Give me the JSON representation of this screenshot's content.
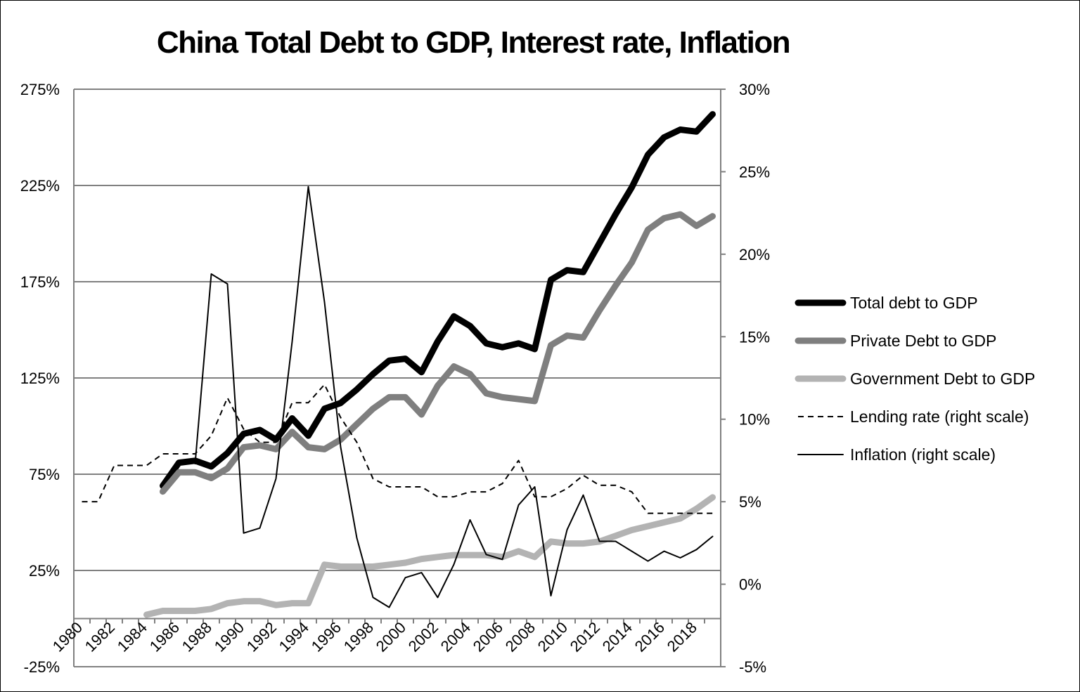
{
  "chart_data": {
    "type": "line",
    "title": "China Total Debt to GDP, Interest rate, Inflation",
    "x": [
      1980,
      1981,
      1982,
      1983,
      1984,
      1985,
      1986,
      1987,
      1988,
      1989,
      1990,
      1991,
      1992,
      1993,
      1994,
      1995,
      1996,
      1997,
      1998,
      1999,
      2000,
      2001,
      2002,
      2003,
      2004,
      2005,
      2006,
      2007,
      2008,
      2009,
      2010,
      2011,
      2012,
      2013,
      2014,
      2015,
      2016,
      2017,
      2018,
      2019
    ],
    "x_tick_labels": [
      "1980",
      "1982",
      "1984",
      "1986",
      "1988",
      "1990",
      "1992",
      "1994",
      "1996",
      "1998",
      "2000",
      "2002",
      "2004",
      "2006",
      "2008",
      "2010",
      "2012",
      "2014",
      "2016",
      "2018"
    ],
    "y_left": {
      "ylim": [
        -25,
        275
      ],
      "ticks": [
        "275%",
        "225%",
        "175%",
        "125%",
        "75%",
        "25%",
        "-25%"
      ],
      "tick_values": [
        275,
        225,
        175,
        125,
        75,
        25,
        -25
      ]
    },
    "y_right": {
      "ylim": [
        -5,
        30
      ],
      "ticks": [
        "30%",
        "25%",
        "20%",
        "15%",
        "10%",
        "5%",
        "0%",
        "-5%"
      ],
      "tick_values": [
        30,
        25,
        20,
        15,
        10,
        5,
        0,
        -5
      ]
    },
    "grid": "horizontal",
    "legend_position": "right",
    "series": [
      {
        "name": "Total debt to GDP",
        "axis": "left",
        "color": "#000000",
        "values": [
          null,
          null,
          null,
          null,
          null,
          69,
          81,
          82,
          79,
          86,
          96,
          98,
          93,
          104,
          95,
          109,
          112,
          119,
          127,
          134,
          135,
          128,
          144,
          157,
          152,
          143,
          141,
          143,
          140,
          176,
          181,
          180,
          195,
          210,
          224,
          241,
          250,
          254,
          253,
          262
        ]
      },
      {
        "name": "Private Debt to GDP",
        "axis": "left",
        "color": "#7f7f7f",
        "values": [
          null,
          null,
          null,
          null,
          null,
          66,
          76,
          76,
          73,
          78,
          89,
          90,
          88,
          97,
          89,
          88,
          93,
          101,
          109,
          115,
          115,
          106,
          121,
          131,
          127,
          117,
          115,
          114,
          113,
          142,
          147,
          146,
          160,
          173,
          185,
          202,
          208,
          210,
          204,
          209
        ]
      },
      {
        "name": "Government Debt to GDP",
        "axis": "left",
        "color": "#b3b3b3",
        "values": [
          null,
          null,
          null,
          null,
          2,
          4,
          4,
          4,
          5,
          8,
          9,
          9,
          7,
          8,
          8,
          28,
          27,
          27,
          27,
          28,
          29,
          31,
          32,
          33,
          33,
          33,
          32,
          35,
          32,
          40,
          39,
          39,
          40,
          43,
          46,
          48,
          50,
          52,
          57,
          63
        ]
      },
      {
        "name": "Lending rate (right scale)",
        "axis": "right",
        "color": "#000000",
        "dash": "dashed",
        "values": [
          5.0,
          5.0,
          7.2,
          7.2,
          7.2,
          7.9,
          7.9,
          7.9,
          9.0,
          11.3,
          9.4,
          8.6,
          8.6,
          11.0,
          11.0,
          12.1,
          10.1,
          8.6,
          6.4,
          5.9,
          5.9,
          5.9,
          5.3,
          5.3,
          5.6,
          5.6,
          6.1,
          7.5,
          5.3,
          5.3,
          5.8,
          6.6,
          6.0,
          6.0,
          5.6,
          4.3,
          4.3,
          4.3,
          4.3,
          4.3
        ]
      },
      {
        "name": "Inflation (right scale)",
        "axis": "right",
        "color": "#000000",
        "values": [
          null,
          null,
          null,
          null,
          null,
          null,
          null,
          7.3,
          18.8,
          18.2,
          3.1,
          3.4,
          6.4,
          14.7,
          24.1,
          17.1,
          8.3,
          2.8,
          -0.8,
          -1.4,
          0.4,
          0.7,
          -0.8,
          1.2,
          3.9,
          1.8,
          1.5,
          4.8,
          5.9,
          -0.7,
          3.3,
          5.4,
          2.6,
          2.6,
          2.0,
          1.4,
          2.0,
          1.6,
          2.1,
          2.9
        ]
      }
    ]
  }
}
